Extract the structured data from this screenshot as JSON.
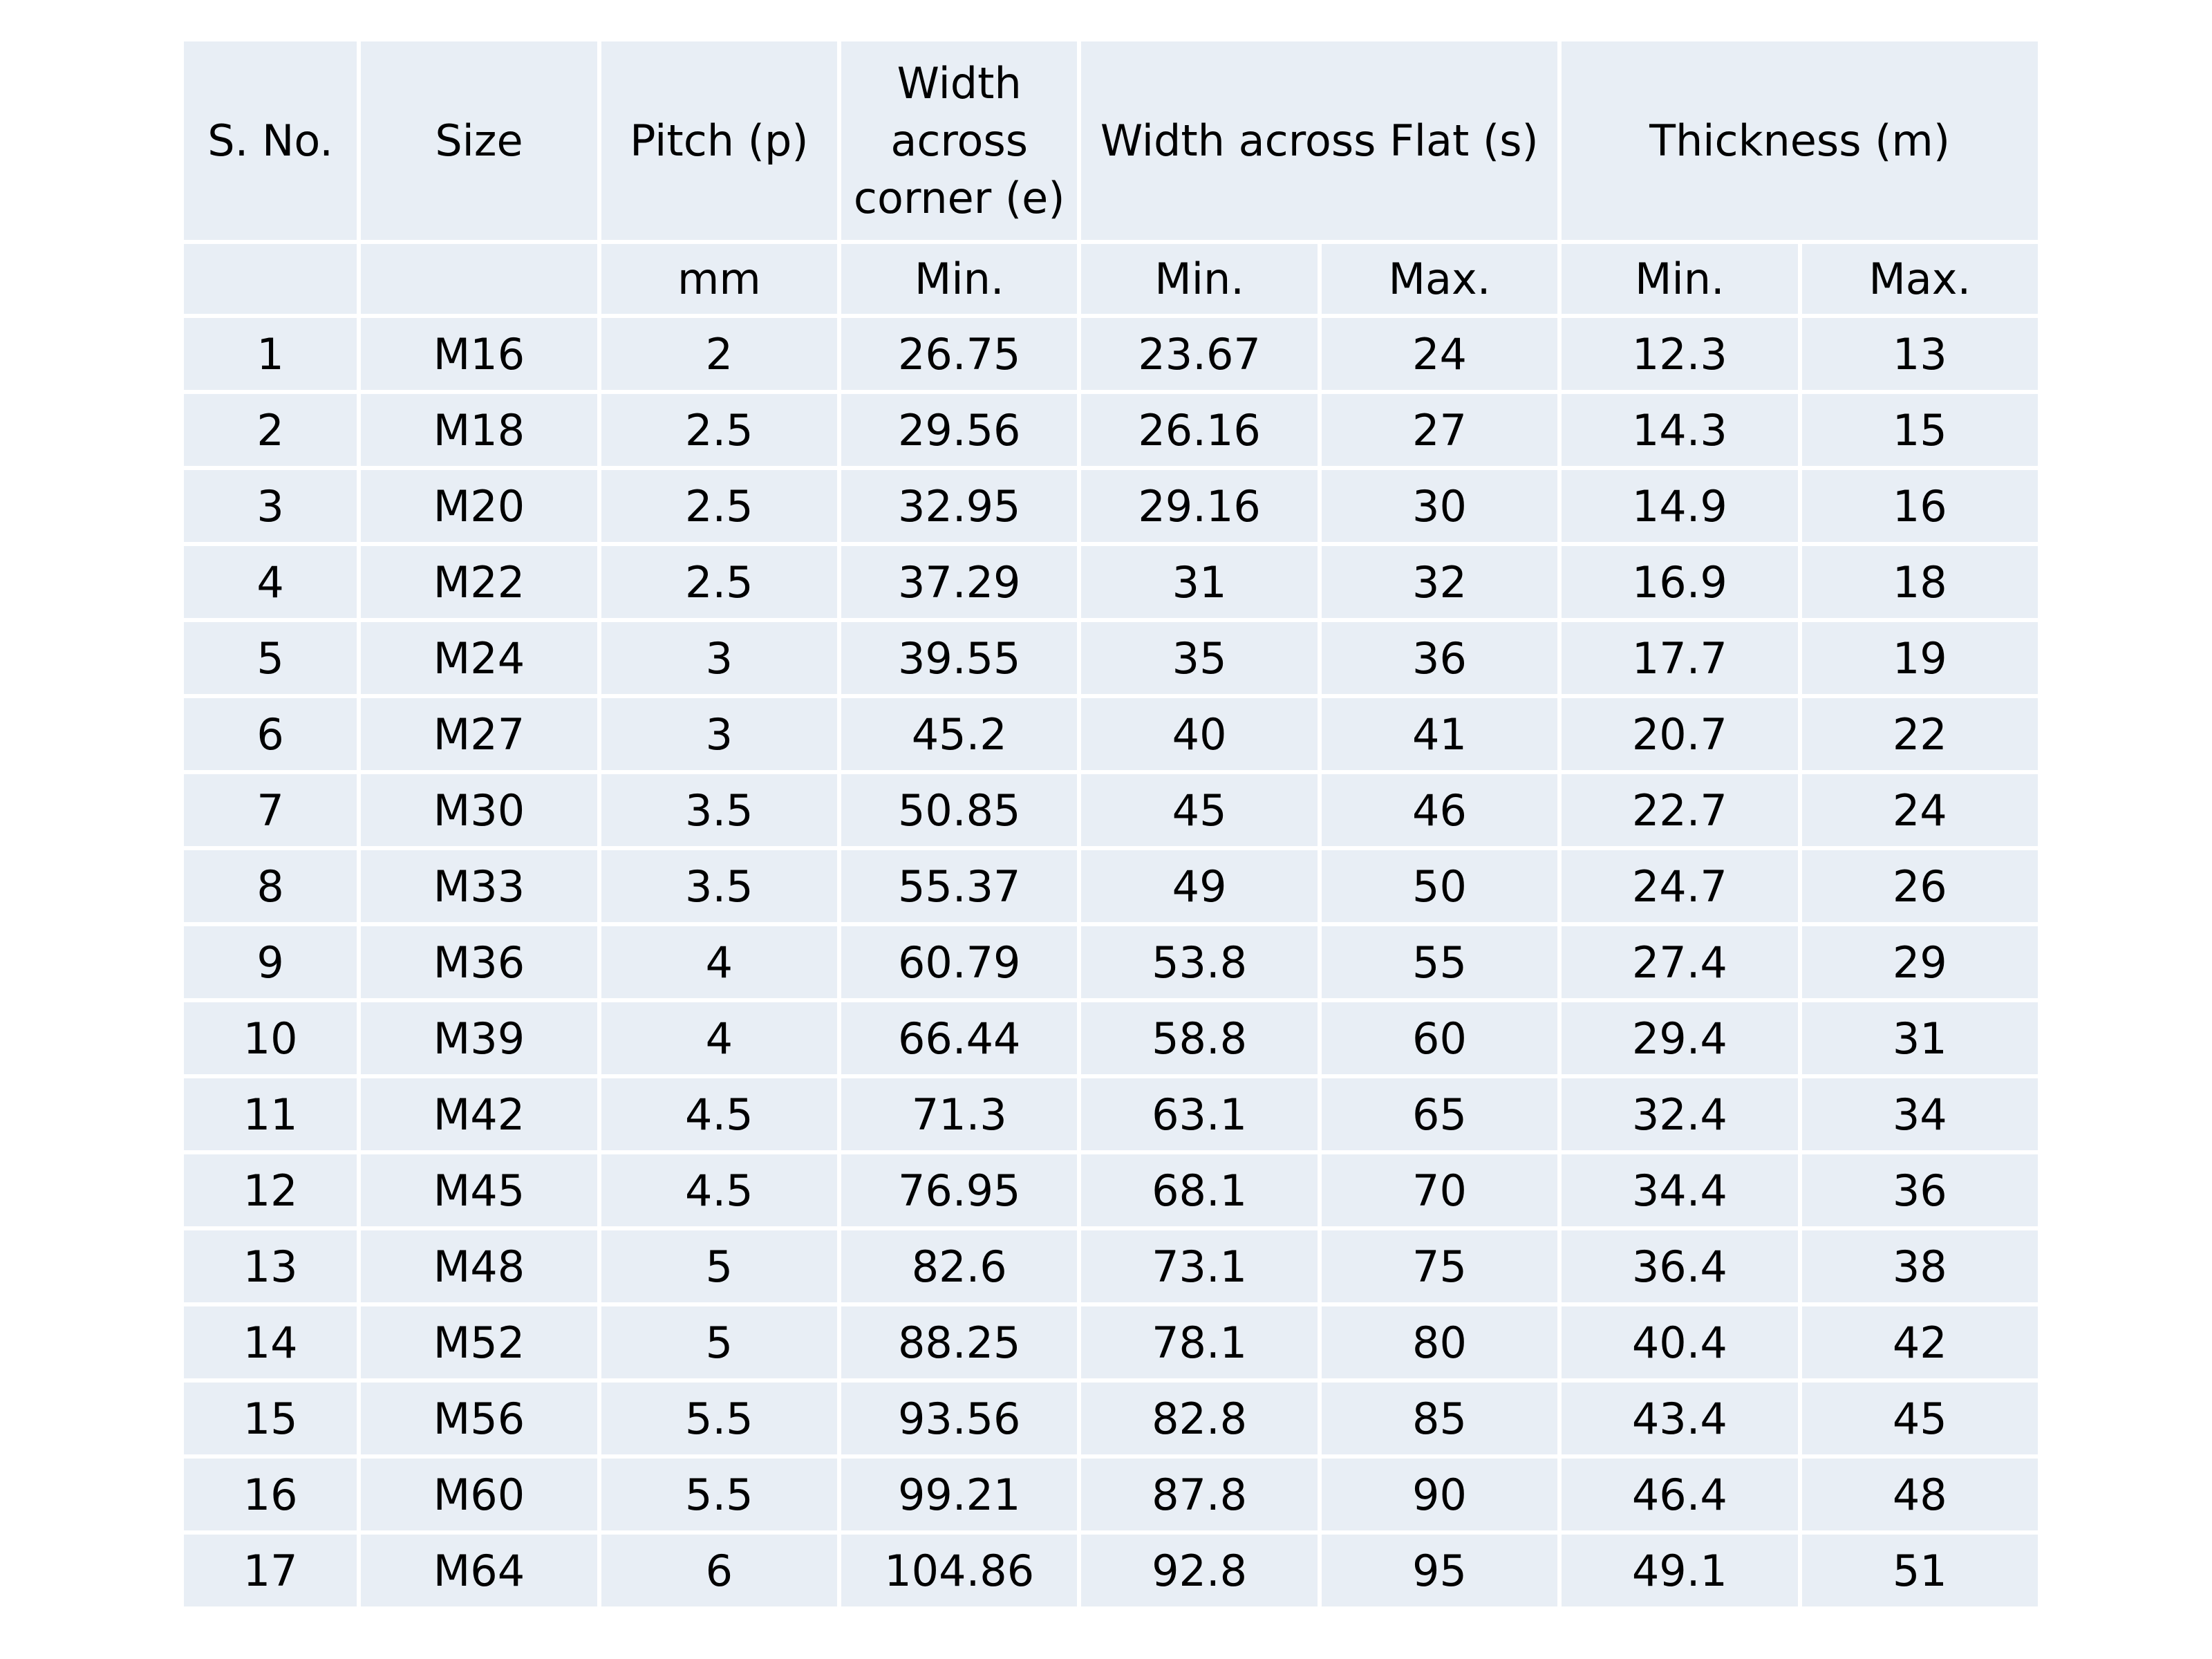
{
  "table": {
    "headers": {
      "sno": "S. No.",
      "size": "Size",
      "pitch": "Pitch (p)",
      "width_corner": "Width across corner (e)",
      "width_flat": "Width across Flat (s)",
      "thickness": "Thickness (m)"
    },
    "subheaders": {
      "sno": "",
      "size": "",
      "pitch": "mm",
      "width_corner_min": "Min.",
      "width_flat_min": "Min.",
      "width_flat_max": "Max.",
      "thickness_min": "Min.",
      "thickness_max": "Max."
    },
    "rows": [
      [
        "1",
        "M16",
        "2",
        "26.75",
        "23.67",
        "24",
        "12.3",
        "13"
      ],
      [
        "2",
        "M18",
        "2.5",
        "29.56",
        "26.16",
        "27",
        "14.3",
        "15"
      ],
      [
        "3",
        "M20",
        "2.5",
        "32.95",
        "29.16",
        "30",
        "14.9",
        "16"
      ],
      [
        "4",
        "M22",
        "2.5",
        "37.29",
        "31",
        "32",
        "16.9",
        "18"
      ],
      [
        "5",
        "M24",
        "3",
        "39.55",
        "35",
        "36",
        "17.7",
        "19"
      ],
      [
        "6",
        "M27",
        "3",
        "45.2",
        "40",
        "41",
        "20.7",
        "22"
      ],
      [
        "7",
        "M30",
        "3.5",
        "50.85",
        "45",
        "46",
        "22.7",
        "24"
      ],
      [
        "8",
        "M33",
        "3.5",
        "55.37",
        "49",
        "50",
        "24.7",
        "26"
      ],
      [
        "9",
        "M36",
        "4",
        "60.79",
        "53.8",
        "55",
        "27.4",
        "29"
      ],
      [
        "10",
        "M39",
        "4",
        "66.44",
        "58.8",
        "60",
        "29.4",
        "31"
      ],
      [
        "11",
        "M42",
        "4.5",
        "71.3",
        "63.1",
        "65",
        "32.4",
        "34"
      ],
      [
        "12",
        "M45",
        "4.5",
        "76.95",
        "68.1",
        "70",
        "34.4",
        "36"
      ],
      [
        "13",
        "M48",
        "5",
        "82.6",
        "73.1",
        "75",
        "36.4",
        "38"
      ],
      [
        "14",
        "M52",
        "5",
        "88.25",
        "78.1",
        "80",
        "40.4",
        "42"
      ],
      [
        "15",
        "M56",
        "5.5",
        "93.56",
        "82.8",
        "85",
        "43.4",
        "45"
      ],
      [
        "16",
        "M60",
        "5.5",
        "99.21",
        "87.8",
        "90",
        "46.4",
        "48"
      ],
      [
        "17",
        "M64",
        "6",
        "104.86",
        "92.8",
        "95",
        "49.1",
        "51"
      ]
    ]
  },
  "colors": {
    "cell_background": "#e8eef5",
    "grid_lines": "#ffffff",
    "text": "#000000"
  }
}
